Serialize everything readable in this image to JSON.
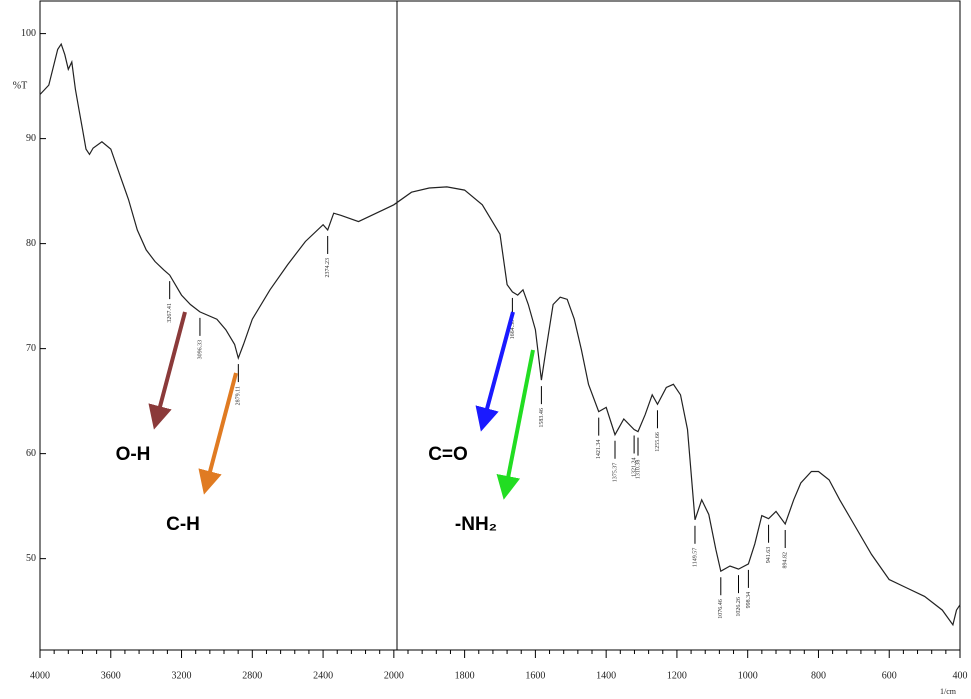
{
  "chart_data": {
    "type": "line",
    "y_label": "%T",
    "x_label": "1/cm",
    "x": [
      4000,
      3950,
      3900,
      3880,
      3860,
      3840,
      3820,
      3800,
      3780,
      3760,
      3740,
      3720,
      3700,
      3650,
      3600,
      3550,
      3500,
      3450,
      3400,
      3350,
      3300,
      3267,
      3200,
      3150,
      3096,
      3000,
      2950,
      2900,
      2879,
      2850,
      2800,
      2700,
      2600,
      2500,
      2400,
      2374,
      2340,
      2300,
      2200,
      2100,
      2000,
      1950,
      1900,
      1850,
      1800,
      1750,
      1700,
      1680,
      1665,
      1650,
      1635,
      1620,
      1600,
      1583,
      1570,
      1550,
      1530,
      1510,
      1490,
      1470,
      1450,
      1421,
      1400,
      1375,
      1350,
      1321,
      1310,
      1290,
      1270,
      1255,
      1230,
      1210,
      1190,
      1170,
      1149,
      1130,
      1110,
      1090,
      1076,
      1050,
      1026,
      998,
      980,
      960,
      941,
      920,
      894,
      870,
      850,
      820,
      800,
      770,
      740,
      700,
      650,
      600,
      550,
      500,
      450,
      420,
      410,
      400
    ],
    "values": [
      94.2,
      95.1,
      98.5,
      99.0,
      98.0,
      96.6,
      97.3,
      94.7,
      92.8,
      90.9,
      89.0,
      88.5,
      89.1,
      89.7,
      89.0,
      86.6,
      84.2,
      81.3,
      79.4,
      78.3,
      77.5,
      77.0,
      75.1,
      74.2,
      73.5,
      72.8,
      71.8,
      70.4,
      69.1,
      70.4,
      72.8,
      75.6,
      78.0,
      80.2,
      81.8,
      81.3,
      82.9,
      82.7,
      82.1,
      82.9,
      83.7,
      84.9,
      85.3,
      85.4,
      85.1,
      83.7,
      80.9,
      76.1,
      75.4,
      75.1,
      75.6,
      74.2,
      71.8,
      67.0,
      69.9,
      74.2,
      74.9,
      74.7,
      72.8,
      69.9,
      66.6,
      64.0,
      64.4,
      61.8,
      63.3,
      62.3,
      62.1,
      63.7,
      65.6,
      64.7,
      66.3,
      66.6,
      65.6,
      62.3,
      53.7,
      55.6,
      54.2,
      50.9,
      48.8,
      49.3,
      49.0,
      49.5,
      51.4,
      54.1,
      53.8,
      54.5,
      53.3,
      55.6,
      57.2,
      58.3,
      58.3,
      57.5,
      55.6,
      53.3,
      50.4,
      48.0,
      47.2,
      46.4,
      45.1,
      43.7,
      45.1,
      45.6
    ],
    "color": "#222222",
    "xlim": [
      4000,
      400
    ],
    "x_expansion": {
      "at": 2000,
      "factor": 2
    },
    "xticks": [
      4000,
      3600,
      3200,
      2800,
      2400,
      2000,
      1800,
      1600,
      1400,
      1200,
      1000,
      800,
      600,
      400
    ],
    "ylim": [
      41.3,
      103.2
    ],
    "yticks": [
      50,
      60,
      70,
      80,
      90,
      100
    ],
    "peaks": [
      {
        "x": 3267,
        "label": "3267.41"
      },
      {
        "x": 3096,
        "label": "3096.33"
      },
      {
        "x": 2879,
        "label": "2879.11"
      },
      {
        "x": 2374,
        "label": "2374.23"
      },
      {
        "x": 1665,
        "label": "1664.50"
      },
      {
        "x": 1583,
        "label": "1583.46"
      },
      {
        "x": 1421,
        "label": "1421.34"
      },
      {
        "x": 1375,
        "label": "1375.37"
      },
      {
        "x": 1321,
        "label": "1321.24"
      },
      {
        "x": 1310,
        "label": "1310.38"
      },
      {
        "x": 1255,
        "label": "1255.66"
      },
      {
        "x": 1149,
        "label": "1149.57"
      },
      {
        "x": 1076,
        "label": "1076.46"
      },
      {
        "x": 1026,
        "label": "1026.26"
      },
      {
        "x": 998,
        "label": "998.34"
      },
      {
        "x": 941,
        "label": "941.63"
      },
      {
        "x": 894,
        "label": "894.82"
      }
    ],
    "annotations": [
      {
        "text": "O-H",
        "color": "#8b3a3a"
      },
      {
        "text": "C-H",
        "color": "#e07b22"
      },
      {
        "text": "C=O",
        "color": "#1a1aff"
      },
      {
        "text": "-NH₂",
        "color": "#22dd22"
      }
    ]
  }
}
